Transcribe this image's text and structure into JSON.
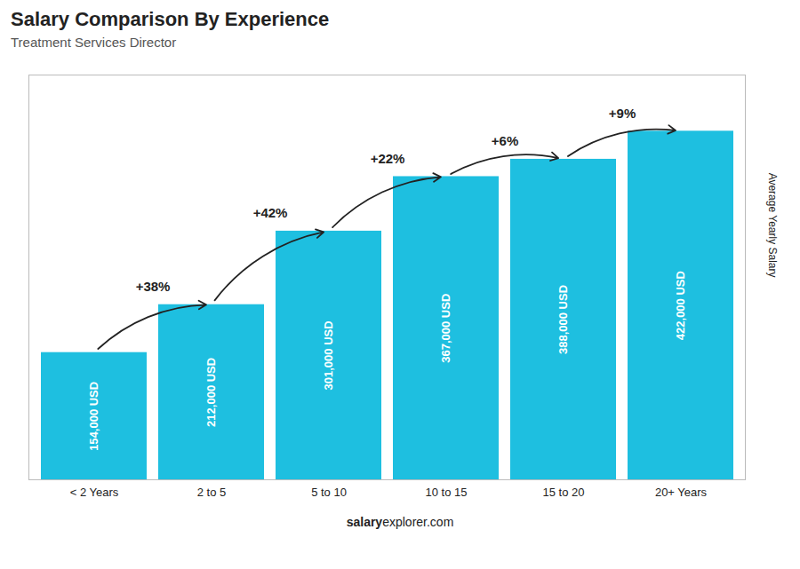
{
  "chart_data": {
    "type": "bar",
    "title": "Salary Comparison By Experience",
    "subtitle": "Treatment Services Director",
    "categories": [
      "< 2 Years",
      "2 to 5",
      "5 to 10",
      "10 to 15",
      "15 to 20",
      "20+ Years"
    ],
    "values": [
      154000,
      212000,
      301000,
      367000,
      388000,
      422000
    ],
    "value_labels": [
      "154,000 USD",
      "212,000 USD",
      "301,000 USD",
      "367,000 USD",
      "388,000 USD",
      "422,000 USD"
    ],
    "data_labels": true,
    "color": "#1ebfe0",
    "ylabel": "Average Yearly Salary",
    "ylim": [
      0,
      490000
    ],
    "tick_labels": "x",
    "annotations": [
      "+38%",
      "+42%",
      "+22%",
      "+6%",
      "+9%"
    ],
    "caption": [
      "salary",
      "explorer.com"
    ]
  }
}
